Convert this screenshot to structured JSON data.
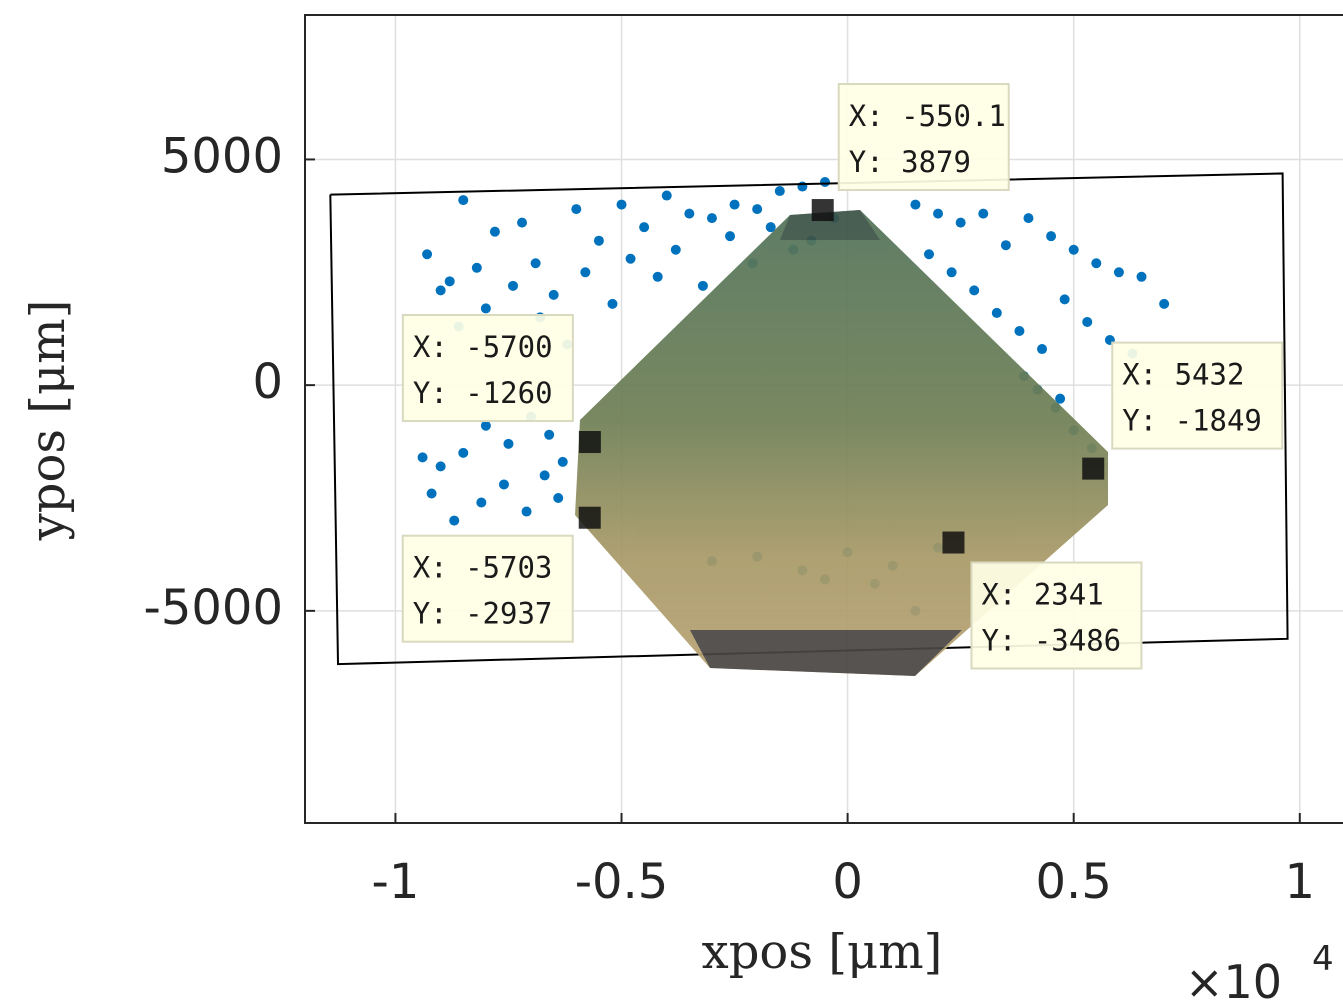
{
  "chart_data": {
    "type": "scatter",
    "x_label": "xpos [μm]",
    "y_label": "ypos [μm]",
    "x_exponent_base": "×10",
    "x_exponent": "4",
    "xlim": [
      -12000,
      11000
    ],
    "ylim": [
      -9700,
      8200
    ],
    "xticks": [
      {
        "value": -10000,
        "label": "-1"
      },
      {
        "value": -5000,
        "label": "-0.5"
      },
      0,
      {
        "value": 5000,
        "label": "0.5"
      },
      {
        "value": 10000,
        "label": "1"
      }
    ],
    "yticks": [
      -5000,
      0,
      5000
    ],
    "grid": true,
    "series": [
      {
        "color": "#0072bd",
        "x": [
          -8500,
          -9300,
          -8800,
          -8200,
          -7800,
          -7200,
          -6900,
          -6500,
          -6000,
          -5500,
          -5000,
          -4500,
          -4000,
          -3500,
          -3000,
          -2500,
          -2000,
          -1500,
          -1000,
          -500,
          -9000,
          -8600,
          -8000,
          -7400,
          -6800,
          -6200,
          -5800,
          -5200,
          -4800,
          -4200,
          -3800,
          -3200,
          -2600,
          -2100,
          -1700,
          -1200,
          -800,
          -300,
          1500,
          2000,
          2500,
          3000,
          3500,
          4000,
          4500,
          5000,
          5500,
          6000,
          6500,
          7000,
          1800,
          2300,
          2800,
          3300,
          3800,
          4300,
          4800,
          5300,
          5800,
          6300,
          -9400,
          -9000,
          -8500,
          -8000,
          -7500,
          -7000,
          -6600,
          -6300,
          -9200,
          -8700,
          -8100,
          -7600,
          -7100,
          -6700,
          -6400,
          4200,
          4600,
          5000,
          5400,
          3900,
          4700,
          -2000,
          -1000,
          0,
          1000,
          2000,
          -3000,
          -500,
          600,
          1500
        ],
        "values": [
          4100,
          2900,
          2300,
          2600,
          3400,
          3600,
          2700,
          2000,
          3900,
          3200,
          4000,
          3500,
          4200,
          3800,
          3700,
          4000,
          3900,
          4300,
          4400,
          4500,
          2100,
          1300,
          1700,
          2200,
          1500,
          900,
          2500,
          1800,
          2800,
          2400,
          3000,
          2200,
          3300,
          2700,
          3500,
          3000,
          3200,
          3700,
          4000,
          3800,
          3600,
          3800,
          3100,
          3700,
          3300,
          3000,
          2700,
          2500,
          2400,
          1800,
          2900,
          2500,
          2100,
          1600,
          1200,
          800,
          1900,
          1400,
          1000,
          700,
          -1600,
          -1800,
          -1500,
          -900,
          -1300,
          -700,
          -1100,
          -1700,
          -2400,
          -3000,
          -2600,
          -2200,
          -2800,
          -2000,
          -2500,
          -100,
          -500,
          -1000,
          -1400,
          200,
          -300,
          -3800,
          -4100,
          -3700,
          -4000,
          -3600,
          -3900,
          -4300,
          -4400,
          -5000
        ]
      },
      {
        "color": "#000000",
        "x": [
          -11440,
          9620,
          9730,
          -11270,
          -11440
        ],
        "values": [
          4220,
          4690,
          -5620,
          -6180,
          4220
        ]
      }
    ],
    "data_tips": [
      {
        "x": -550.1,
        "y": 3879,
        "x_label": "X: -550.1",
        "y_label": "Y: 3879"
      },
      {
        "x": -5700,
        "y": -1260,
        "x_label": "X: -5700",
        "y_label": "Y: -1260"
      },
      {
        "x": -5703,
        "y": -2937,
        "x_label": "X: -5703",
        "y_label": "Y: -2937"
      },
      {
        "x": 5432,
        "y": -1849,
        "x_label": "X: 5432",
        "y_label": "Y: -1849"
      },
      {
        "x": 2341,
        "y": -3486,
        "x_label": "X: 2341",
        "y_label": "Y: -3486"
      }
    ]
  }
}
